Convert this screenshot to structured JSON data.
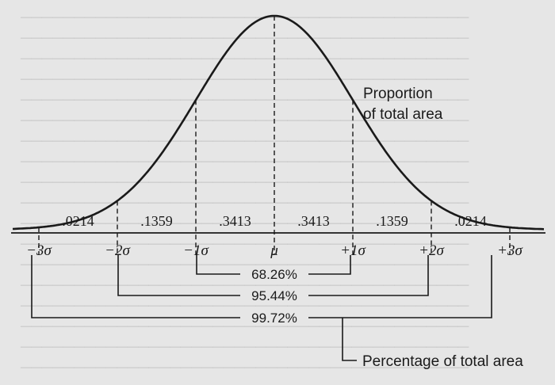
{
  "area_label": {
    "line1": "Proportion",
    "line2": "of total area"
  },
  "percent_label": "Percentage of total area",
  "bands": [
    {
      "label": ".0214"
    },
    {
      "label": ".1359"
    },
    {
      "label": ".3413"
    },
    {
      "label": ".3413"
    },
    {
      "label": ".1359"
    },
    {
      "label": ".0214"
    }
  ],
  "axis_ticks": [
    {
      "label": "−3σ"
    },
    {
      "label": "−2σ"
    },
    {
      "label": "−1σ"
    },
    {
      "label": "μ"
    },
    {
      "label": "+1σ"
    },
    {
      "label": "+2σ"
    },
    {
      "label": "+3σ"
    }
  ],
  "coverage": [
    {
      "label": "68.26%"
    },
    {
      "label": "95.44%"
    },
    {
      "label": "99.72%"
    }
  ]
}
